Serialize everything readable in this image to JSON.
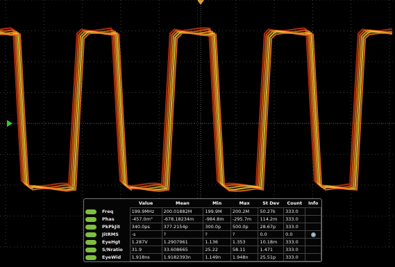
{
  "measurements": {
    "headers": [
      "Value",
      "Mean",
      "Min",
      "Max",
      "St Dev",
      "Count",
      "Info"
    ],
    "rows": [
      {
        "name": "Freq",
        "cells": [
          "199.9MHz",
          "200.01882M",
          "199.9M",
          "200.2M",
          "50.27k",
          "333.0"
        ]
      },
      {
        "name": "Phas",
        "cells": [
          "-457.0m°",
          "-678.18234m",
          "-984.8m",
          "-295.7m",
          "114.2m",
          "333.0"
        ]
      },
      {
        "name": "PkPkJit",
        "cells": [
          "340.0ps",
          "377.2154p",
          "300.0p",
          "500.0p",
          "28.67p",
          "333.0"
        ]
      },
      {
        "name": "JitRMS",
        "cells": [
          "-s",
          "?",
          "?",
          "?",
          "0.0",
          "0.0"
        ]
      },
      {
        "name": "EyeHgt",
        "cells": [
          "1.287V",
          "1.2907961",
          "1.136",
          "1.353",
          "10.18m",
          "333.0"
        ]
      },
      {
        "name": "S/Nratio",
        "cells": [
          "31.9",
          "33.608665",
          "25.22",
          "58.11",
          "1.471",
          "333.0"
        ]
      },
      {
        "name": "EyeWid",
        "cells": [
          "1.918ns",
          "1.9182393n",
          "1.149n",
          "1.948n",
          "25.51p",
          "333.0"
        ]
      }
    ]
  }
}
